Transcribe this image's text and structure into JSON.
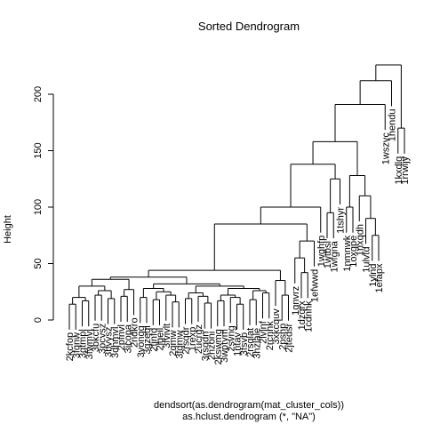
{
  "chart_data": {
    "type": "dendrogram",
    "title": "Sorted Dendrogram",
    "xlabel": "dendsort(as.dendrogram(mat_cluster_cols))",
    "sub": "as.hclust.dendrogram (*, \"NA\")",
    "ylabel": "Height",
    "ylim": [
      0,
      226
    ],
    "yticks": [
      0,
      50,
      100,
      150,
      200
    ],
    "hang": 0.1,
    "labels": [
      "2kcfop",
      "3fqnw",
      "3gtmpl",
      "3fwmvl",
      "3bkcfu",
      "3pcvsz",
      "3bvysz",
      "3dhmvl",
      "2pfnvl",
      "3icopa",
      "2ndkro",
      "3vongg",
      "3gzeqi",
      "2fjnfo",
      "2lqeil",
      "3fvivlt",
      "2qmw",
      "3fqmw",
      "2rsqdr",
      "1rexp",
      "2ucrgz",
      "3rsqdn",
      "2hzoni",
      "2kswmg",
      "3wptym",
      "2svng",
      "1ntav",
      "3fsvb",
      "2rsqlat",
      "3hzlale",
      "2lvlnf",
      "2rcnhk",
      "3xkcquv",
      "2pshp",
      "2jtedsr",
      "1gnvrz",
      "1dzqrx",
      "1cdnhk",
      "1efwwd",
      "1wghfp",
      "1wtbsl",
      "1wfgna",
      "1tshyr",
      "1nmnwk",
      "1oxgpe",
      "1nxqdh",
      "1ulvtd",
      "1ylnd",
      "1efapx",
      "1wszvc",
      "1hendu",
      "1kxdlg",
      "1rrwljy"
    ],
    "tree": [
      226,
      [
        212,
        [
          191,
          [
            158,
            [
              138,
              [
                100,
                [
                  85,
                  [
                    44,
                    [
                      38,
                      [
                        36,
                        [
                          30,
                          [
                            20,
                            [
                              14,
                              0,
                              1
                            ],
                            [
                              17,
                              2,
                              3
                            ]
                          ],
                          [
                            26,
                            [
                              22,
                              4,
                              5
                            ],
                            [
                              19,
                              6,
                              7
                            ]
                          ]
                        ],
                        [
                          27,
                          [
                            21,
                            8,
                            9
                          ],
                          10
                        ]
                      ],
                      [
                        32,
                        [
                          28,
                          [
                            20,
                            11,
                            12
                          ],
                          [
                            25,
                            [
                              18,
                              13,
                              14
                            ],
                            [
                              22,
                              15,
                              [
                                16,
                                16,
                                17
                              ]
                            ]
                          ]
                        ],
                        [
                          30,
                          [
                            24,
                            [
                              19,
                              18,
                              19
                            ],
                            [
                              21,
                              20,
                              [
                                15,
                                21,
                                22
                              ]
                            ]
                          ],
                          [
                            28,
                            [
                              22,
                              [
                                17,
                                23,
                                24
                              ],
                              [
                                20,
                                25,
                                [
                                  14,
                                  26,
                                  27
                                ]
                              ]
                            ],
                            [
                              26,
                              [
                                18,
                                28,
                                29
                              ],
                              [
                                24,
                                30,
                                31
                              ]
                            ]
                          ]
                        ]
                      ]
                    ],
                    [
                      35,
                      32,
                      [
                        22,
                        33,
                        34
                      ]
                    ]
                  ],
                  [
                    70,
                    [
                      55,
                      35,
                      [
                        42,
                        36,
                        37
                      ]
                    ],
                    38
                  ]
                ],
                39
              ],
              [
                125,
                [
                  95,
                  40,
                  41
                ],
                42
              ]
            ],
            [
              128,
              [
                100,
                43,
                44
              ],
              [
                110,
                45,
                [
                  90,
                  46,
                  [
                    75,
                    47,
                    48
                  ]
                ]
              ]
            ]
          ],
          49
        ],
        50
      ],
      [
        170,
        51,
        52
      ]
    ]
  }
}
